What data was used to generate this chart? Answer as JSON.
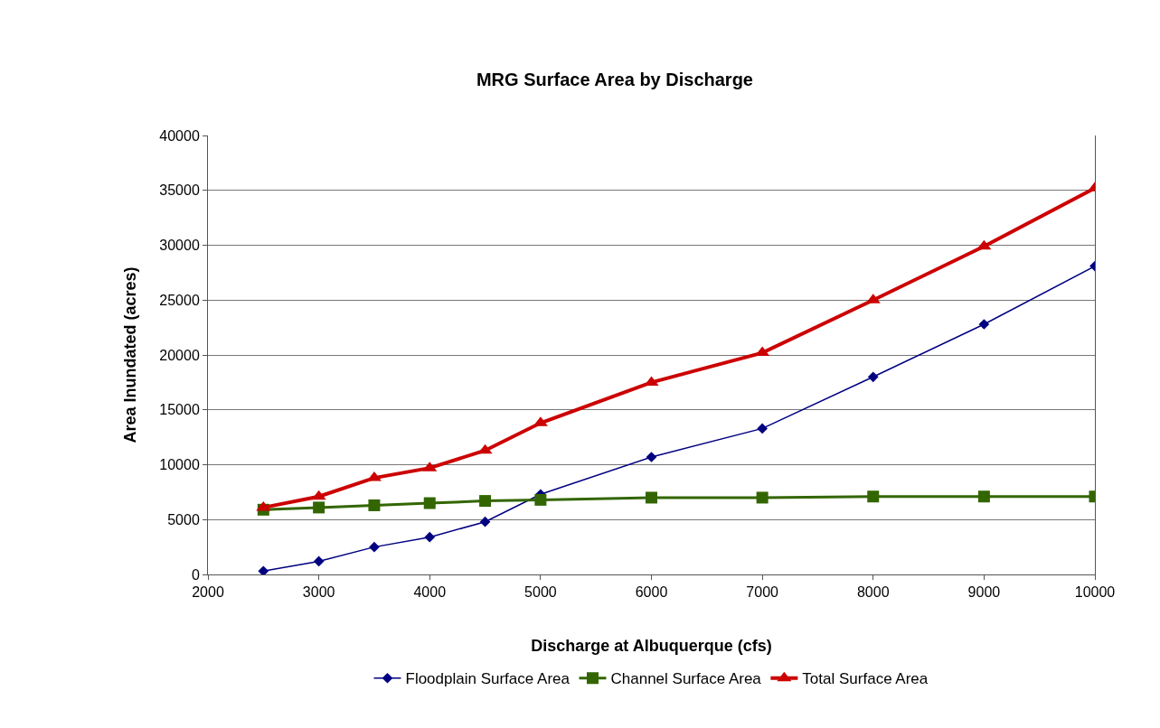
{
  "chart_data": {
    "type": "line",
    "title": "MRG Surface Area by Discharge",
    "xlabel": "Discharge at Albuquerque (cfs)",
    "ylabel": "Area Inundated (acres)",
    "x": [
      2500,
      3000,
      3500,
      4000,
      4500,
      5000,
      6000,
      7000,
      8000,
      9000,
      10000
    ],
    "series": [
      {
        "name": "Floodplain Surface Area",
        "color": "#000080",
        "marker": "diamond",
        "values": [
          300,
          1200,
          2500,
          3400,
          4800,
          7300,
          10700,
          13300,
          18000,
          22800,
          28100
        ]
      },
      {
        "name": "Channel Surface Area",
        "color": "#336600",
        "marker": "square",
        "values": [
          5900,
          6100,
          6300,
          6500,
          6700,
          6800,
          7000,
          7000,
          7100,
          7100,
          7100
        ]
      },
      {
        "name": "Total Surface Area",
        "color": "#cc0000",
        "marker": "triangle",
        "values": [
          6100,
          7100,
          8800,
          9700,
          11300,
          13800,
          17500,
          20200,
          25000,
          29900,
          35200
        ]
      }
    ],
    "xlim": [
      2000,
      10000
    ],
    "xticks": [
      2000,
      3000,
      4000,
      5000,
      6000,
      7000,
      8000,
      9000,
      10000
    ],
    "ylim": [
      0,
      40000
    ],
    "yticks": [
      0,
      5000,
      10000,
      15000,
      20000,
      25000,
      30000,
      35000,
      40000
    ],
    "grid": "y",
    "legend": "bottom"
  }
}
